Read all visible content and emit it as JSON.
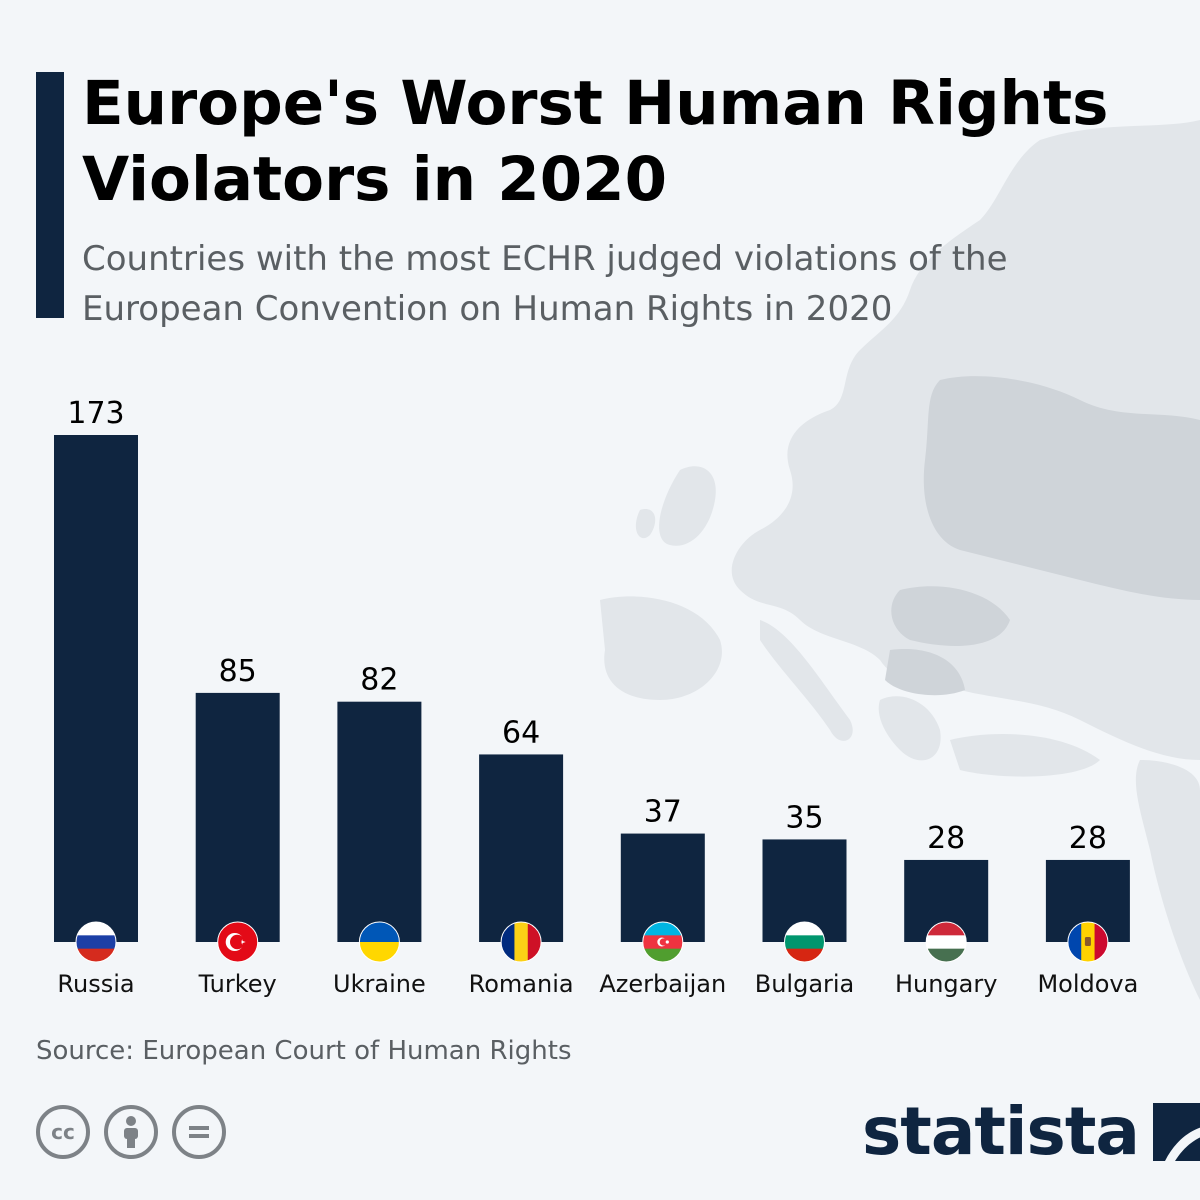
{
  "header": {
    "title": "Europe's Worst Human Rights Violators in 2020",
    "subtitle": "Countries with the most ECHR judged violations of the European Convention on Human Rights in 2020"
  },
  "chart_data": {
    "type": "bar",
    "title": "Europe's Worst Human Rights Violators in 2020",
    "subtitle": "Countries with the most ECHR judged violations of the European Convention on Human Rights in 2020",
    "categories": [
      "Russia",
      "Turkey",
      "Ukraine",
      "Romania",
      "Azerbaijan",
      "Bulgaria",
      "Hungary",
      "Moldova"
    ],
    "values": [
      173,
      85,
      82,
      64,
      37,
      35,
      28,
      28
    ],
    "xlabel": "",
    "ylabel": "",
    "ylim": [
      0,
      173
    ],
    "grid": false,
    "bar_color": "#0f2540"
  },
  "footer": {
    "source": "Source: European Court of Human Rights",
    "brand": "statista",
    "license_icons": [
      "cc-icon",
      "attribution-icon",
      "no-derivatives-icon"
    ]
  },
  "colors": {
    "accent": "#0f2540",
    "background": "#f3f6f9",
    "map": "#dfe3e7"
  }
}
